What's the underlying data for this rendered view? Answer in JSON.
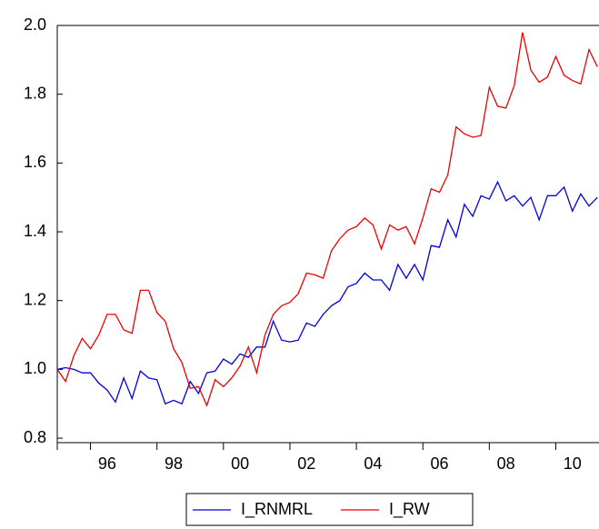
{
  "chart_data": {
    "type": "line",
    "x": [
      1995,
      1995.25,
      1995.5,
      1995.75,
      1996,
      1996.25,
      1996.5,
      1996.75,
      1997,
      1997.25,
      1997.5,
      1997.75,
      1998,
      1998.25,
      1998.5,
      1998.75,
      1999,
      1999.25,
      1999.5,
      1999.75,
      2000,
      2000.25,
      2000.5,
      2000.75,
      2001,
      2001.25,
      2001.5,
      2001.75,
      2002,
      2002.25,
      2002.5,
      2002.75,
      2003,
      2003.25,
      2003.5,
      2003.75,
      2004,
      2004.25,
      2004.5,
      2004.75,
      2005,
      2005.25,
      2005.5,
      2005.75,
      2006,
      2006.25,
      2006.5,
      2006.75,
      2007,
      2007.25,
      2007.5,
      2007.75,
      2008,
      2008.25,
      2008.5,
      2008.75,
      2009,
      2009.25,
      2009.5,
      2009.75,
      2010,
      2010.25,
      2010.5,
      2010.75,
      2011,
      2011.25
    ],
    "series": [
      {
        "name": "I_RNMRL",
        "color": "#0000dd",
        "values": [
          1.0,
          1.005,
          1.0,
          0.99,
          0.99,
          0.96,
          0.94,
          0.905,
          0.975,
          0.915,
          0.995,
          0.975,
          0.97,
          0.9,
          0.91,
          0.9,
          0.965,
          0.93,
          0.99,
          0.995,
          1.03,
          1.015,
          1.045,
          1.035,
          1.065,
          1.065,
          1.14,
          1.085,
          1.08,
          1.085,
          1.135,
          1.125,
          1.16,
          1.185,
          1.2,
          1.24,
          1.25,
          1.28,
          1.26,
          1.26,
          1.23,
          1.305,
          1.265,
          1.305,
          1.26,
          1.36,
          1.355,
          1.435,
          1.385,
          1.48,
          1.445,
          1.505,
          1.495,
          1.545,
          1.49,
          1.505,
          1.475,
          1.5,
          1.435,
          1.505,
          1.505,
          1.53,
          1.46,
          1.51,
          1.475,
          1.5
        ]
      },
      {
        "name": "I_RW",
        "color": "#ee0000",
        "values": [
          1.0,
          0.965,
          1.04,
          1.09,
          1.06,
          1.1,
          1.16,
          1.16,
          1.115,
          1.105,
          1.23,
          1.23,
          1.165,
          1.14,
          1.06,
          1.02,
          0.945,
          0.95,
          0.895,
          0.97,
          0.95,
          0.975,
          1.01,
          1.065,
          0.99,
          1.1,
          1.16,
          1.185,
          1.195,
          1.22,
          1.28,
          1.275,
          1.265,
          1.345,
          1.38,
          1.405,
          1.415,
          1.44,
          1.42,
          1.35,
          1.42,
          1.405,
          1.415,
          1.365,
          1.44,
          1.525,
          1.515,
          1.565,
          1.705,
          1.685,
          1.675,
          1.68,
          1.82,
          1.765,
          1.76,
          1.825,
          1.98,
          1.87,
          1.835,
          1.85,
          1.91,
          1.855,
          1.84,
          1.83,
          1.93,
          1.88
        ]
      }
    ],
    "xlim": [
      1995,
      2011.3
    ],
    "xticks": [
      {
        "value": 1996,
        "label": "96"
      },
      {
        "value": 1998,
        "label": "98"
      },
      {
        "value": 2000,
        "label": "00"
      },
      {
        "value": 2002,
        "label": "02"
      },
      {
        "value": 2004,
        "label": "04"
      },
      {
        "value": 2006,
        "label": "06"
      },
      {
        "value": 2008,
        "label": "08"
      },
      {
        "value": 2010,
        "label": "10"
      }
    ],
    "ylim": [
      0.787,
      2.0
    ],
    "yticks": [
      0.8,
      {
        "value": 1,
        "label": "1.0"
      },
      1.2,
      1.4,
      1.6,
      1.8,
      {
        "value": 2,
        "label": "2.0"
      }
    ],
    "legend": "bottom"
  }
}
